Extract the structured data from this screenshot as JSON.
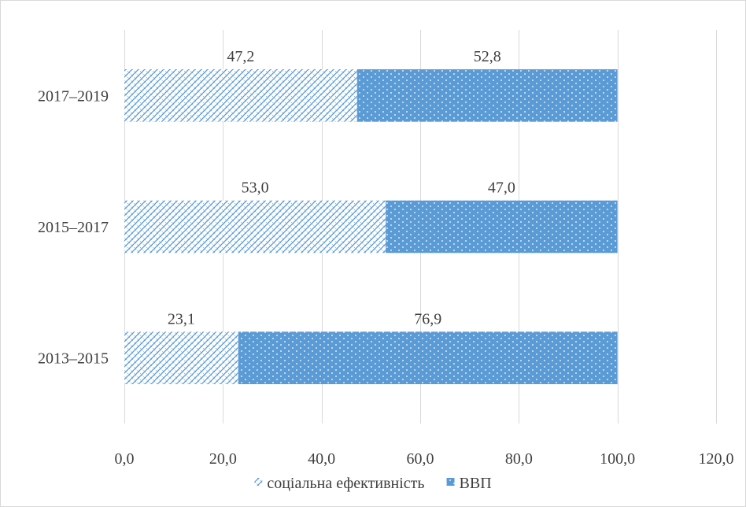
{
  "chart_data": {
    "type": "bar",
    "orientation": "horizontal",
    "stacked": true,
    "categories": [
      "2013–2015",
      "2015–2017",
      "2017–2019"
    ],
    "series": [
      {
        "name": "соціальна ефективність",
        "values": [
          23.1,
          53.0,
          47.2
        ],
        "value_labels": [
          "23,1",
          "53,0",
          "47,2"
        ],
        "color": "#5b9bd5",
        "pattern": "crosshatch"
      },
      {
        "name": "ВВП",
        "values": [
          76.9,
          47.0,
          52.8
        ],
        "value_labels": [
          "76,9",
          "47,0",
          "52,8"
        ],
        "color": "#5b9bd5",
        "pattern": "dots"
      }
    ],
    "xlim": [
      0,
      120
    ],
    "x_ticks": [
      0,
      20,
      40,
      60,
      80,
      100,
      120
    ],
    "x_tick_labels": [
      "0,0",
      "20,0",
      "40,0",
      "60,0",
      "80,0",
      "100,0",
      "120,0"
    ],
    "grid": true,
    "legend": "bottom",
    "title": "",
    "xlabel": "",
    "ylabel": ""
  }
}
